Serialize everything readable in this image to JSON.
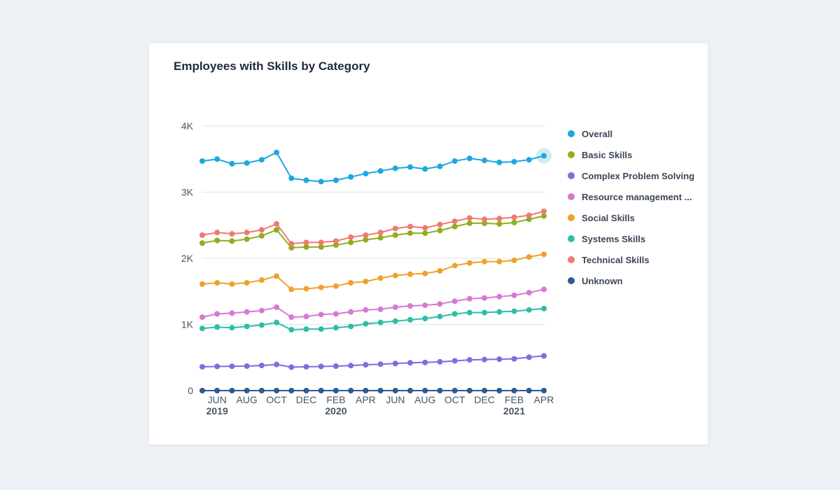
{
  "card": {
    "title": "Employees with Skills by Category"
  },
  "chart_data": {
    "type": "line",
    "title": "Employees with Skills by Category",
    "xlabel": "",
    "ylabel": "",
    "ylim": [
      0,
      4000
    ],
    "yticks": [
      {
        "value": 0,
        "label": "0"
      },
      {
        "value": 1000,
        "label": "1K"
      },
      {
        "value": 2000,
        "label": "2K"
      },
      {
        "value": 3000,
        "label": "3K"
      },
      {
        "value": 4000,
        "label": "4K"
      }
    ],
    "x": [
      "2019-05",
      "2019-06",
      "2019-07",
      "2019-08",
      "2019-09",
      "2019-10",
      "2019-11",
      "2019-12",
      "2020-01",
      "2020-02",
      "2020-03",
      "2020-04",
      "2020-05",
      "2020-06",
      "2020-07",
      "2020-08",
      "2020-09",
      "2020-10",
      "2020-11",
      "2020-12",
      "2021-01",
      "2021-02",
      "2021-03",
      "2021-04"
    ],
    "xticks": [
      {
        "index": 1,
        "label": "JUN",
        "year": "2019"
      },
      {
        "index": 3,
        "label": "AUG",
        "year": ""
      },
      {
        "index": 5,
        "label": "OCT",
        "year": ""
      },
      {
        "index": 7,
        "label": "DEC",
        "year": ""
      },
      {
        "index": 9,
        "label": "FEB",
        "year": "2020"
      },
      {
        "index": 11,
        "label": "APR",
        "year": ""
      },
      {
        "index": 13,
        "label": "JUN",
        "year": ""
      },
      {
        "index": 15,
        "label": "AUG",
        "year": ""
      },
      {
        "index": 17,
        "label": "OCT",
        "year": ""
      },
      {
        "index": 19,
        "label": "DEC",
        "year": ""
      },
      {
        "index": 21,
        "label": "FEB",
        "year": "2021"
      },
      {
        "index": 23,
        "label": "APR",
        "year": ""
      }
    ],
    "highlight": {
      "series": 0,
      "index": 23
    },
    "legend_position": "right",
    "series": [
      {
        "name": "Overall",
        "color": "#1ea7e1",
        "values": [
          3470,
          3500,
          3430,
          3440,
          3490,
          3600,
          3210,
          3180,
          3160,
          3180,
          3230,
          3280,
          3320,
          3360,
          3380,
          3350,
          3390,
          3470,
          3510,
          3480,
          3450,
          3460,
          3490,
          3550
        ]
      },
      {
        "name": "Basic Skills",
        "color": "#8fae1b",
        "values": [
          2230,
          2270,
          2260,
          2290,
          2340,
          2430,
          2160,
          2170,
          2170,
          2200,
          2240,
          2280,
          2310,
          2350,
          2380,
          2380,
          2420,
          2480,
          2530,
          2530,
          2520,
          2540,
          2590,
          2640
        ]
      },
      {
        "name": "Complex Problem Solving",
        "color": "#7c6ee0",
        "values": [
          360,
          365,
          368,
          370,
          380,
          395,
          355,
          360,
          365,
          370,
          378,
          390,
          400,
          410,
          420,
          425,
          435,
          450,
          465,
          470,
          475,
          480,
          505,
          525
        ]
      },
      {
        "name": "Resource management ...",
        "color": "#d57ad3",
        "values": [
          1110,
          1160,
          1170,
          1190,
          1210,
          1260,
          1110,
          1120,
          1150,
          1160,
          1190,
          1220,
          1230,
          1260,
          1280,
          1290,
          1310,
          1350,
          1390,
          1400,
          1420,
          1440,
          1480,
          1530
        ]
      },
      {
        "name": "Social Skills",
        "color": "#f0a12b",
        "values": [
          1610,
          1630,
          1610,
          1630,
          1670,
          1730,
          1530,
          1540,
          1560,
          1580,
          1630,
          1650,
          1700,
          1740,
          1760,
          1770,
          1810,
          1890,
          1930,
          1950,
          1950,
          1970,
          2020,
          2060
        ]
      },
      {
        "name": "Systems Skills",
        "color": "#2ebea4",
        "values": [
          940,
          960,
          950,
          970,
          990,
          1030,
          920,
          930,
          930,
          950,
          970,
          1010,
          1030,
          1050,
          1070,
          1090,
          1120,
          1160,
          1180,
          1180,
          1190,
          1200,
          1220,
          1240
        ]
      },
      {
        "name": "Technical Skills",
        "color": "#ef7a70",
        "values": [
          2350,
          2390,
          2370,
          2390,
          2430,
          2520,
          2220,
          2240,
          2240,
          2260,
          2320,
          2350,
          2390,
          2450,
          2480,
          2460,
          2510,
          2560,
          2610,
          2590,
          2600,
          2620,
          2650,
          2710
        ]
      },
      {
        "name": "Unknown",
        "color": "#2a5c8e",
        "values": [
          0,
          0,
          0,
          0,
          0,
          0,
          0,
          0,
          0,
          0,
          0,
          0,
          0,
          0,
          0,
          0,
          0,
          0,
          0,
          0,
          0,
          0,
          0,
          0
        ]
      }
    ]
  }
}
